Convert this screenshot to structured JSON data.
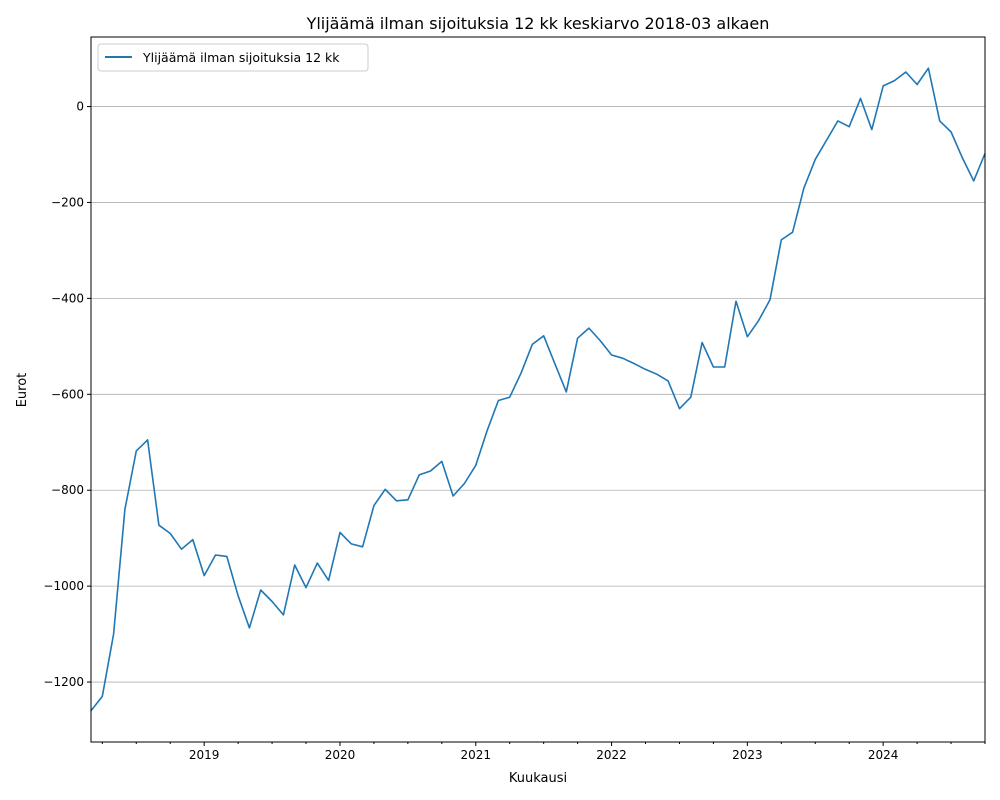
{
  "chart_data": {
    "type": "line",
    "title": "Ylijäämä ilman sijoituksia 12 kk keskiarvo 2018-03 alkaen",
    "xlabel": "Kuukausi",
    "ylabel": "Eurot",
    "xlim": [
      "2018-03",
      "2024-10"
    ],
    "ylim": [
      -1325,
      145
    ],
    "yticks": [
      0,
      -200,
      -400,
      -600,
      -800,
      -1000,
      -1200
    ],
    "ytick_labels": [
      "0",
      "−200",
      "−400",
      "−600",
      "−800",
      "−1000",
      "−1200"
    ],
    "xticks": [
      "2019-01",
      "2020-01",
      "2021-01",
      "2022-01",
      "2023-01",
      "2024-01"
    ],
    "xtick_labels": [
      "2019",
      "2020",
      "2021",
      "2022",
      "2023",
      "2024"
    ],
    "grid": "y",
    "legend": {
      "position": "top-left"
    },
    "series": [
      {
        "name": "Ylijäämä ilman sijoituksia 12 kk",
        "color": "#1f77b4",
        "x": [
          "2018-03",
          "2018-04",
          "2018-05",
          "2018-06",
          "2018-07",
          "2018-08",
          "2018-09",
          "2018-10",
          "2018-11",
          "2018-12",
          "2019-01",
          "2019-02",
          "2019-03",
          "2019-04",
          "2019-05",
          "2019-06",
          "2019-07",
          "2019-08",
          "2019-09",
          "2019-10",
          "2019-11",
          "2019-12",
          "2020-01",
          "2020-02",
          "2020-03",
          "2020-04",
          "2020-05",
          "2020-06",
          "2020-07",
          "2020-08",
          "2020-09",
          "2020-10",
          "2020-11",
          "2020-12",
          "2021-01",
          "2021-02",
          "2021-03",
          "2021-04",
          "2021-05",
          "2021-06",
          "2021-07",
          "2021-08",
          "2021-09",
          "2021-10",
          "2021-11",
          "2021-12",
          "2022-01",
          "2022-02",
          "2022-03",
          "2022-04",
          "2022-05",
          "2022-06",
          "2022-07",
          "2022-08",
          "2022-09",
          "2022-10",
          "2022-11",
          "2022-12",
          "2023-01",
          "2023-02",
          "2023-03",
          "2023-04",
          "2023-05",
          "2023-06",
          "2023-07",
          "2023-08",
          "2023-09",
          "2023-10",
          "2023-11",
          "2023-12",
          "2024-01",
          "2024-02",
          "2024-03",
          "2024-04",
          "2024-05",
          "2024-06",
          "2024-07",
          "2024-08",
          "2024-09",
          "2024-10"
        ],
        "y": [
          -1260,
          -1230,
          -1100,
          -840,
          -718,
          -695,
          -873,
          -890,
          -923,
          -903,
          -978,
          -935,
          -938,
          -1020,
          -1087,
          -1008,
          -1032,
          -1060,
          -956,
          -1003,
          -952,
          -988,
          -888,
          -912,
          -918,
          -832,
          -798,
          -822,
          -820,
          -768,
          -760,
          -740,
          -812,
          -786,
          -748,
          -676,
          -613,
          -606,
          -556,
          -496,
          -478,
          -537,
          -595,
          -483,
          -462,
          -488,
          -518,
          -525,
          -536,
          -548,
          -558,
          -572,
          -630,
          -606,
          -492,
          -543,
          -543,
          -406,
          -480,
          -446,
          -403,
          -278,
          -262,
          -170,
          -110,
          -70,
          -30,
          -42,
          17,
          -48,
          43,
          54,
          72,
          46,
          80,
          -30,
          -53,
          -107,
          -155,
          -98
        ]
      }
    ]
  }
}
